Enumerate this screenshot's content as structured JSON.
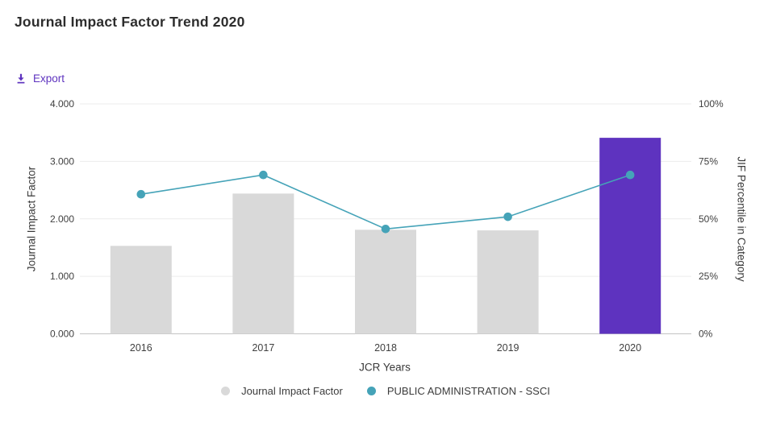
{
  "page": {
    "title": "Journal Impact Factor Trend 2020"
  },
  "toolbar": {
    "export_label": "Export",
    "export_icon": "download-icon"
  },
  "colors": {
    "accent_purple": "#5e33bf",
    "bar_gray": "#d9d9d9",
    "line_teal": "#45a3b8",
    "grid": "#ececec",
    "axis_line": "#c4c4c4",
    "text_dark": "#2d2d2d",
    "text_axis": "#3f3f3f"
  },
  "chart_data": {
    "type": "bar",
    "title": "Journal Impact Factor Trend 2020",
    "categories": [
      "2016",
      "2017",
      "2018",
      "2019",
      "2020"
    ],
    "series": [
      {
        "name": "Journal Impact Factor",
        "type": "bar",
        "axis": "left",
        "values": [
          1.53,
          2.44,
          1.81,
          1.8,
          3.41
        ],
        "color": "#d9d9d9",
        "highlight": {
          "index": 4,
          "color": "#5e33bf"
        }
      },
      {
        "name": "PUBLIC ADMINISTRATION - SSCI",
        "type": "line",
        "axis": "right",
        "values": [
          60.7,
          69.1,
          45.6,
          50.9,
          69.1
        ],
        "color": "#45a3b8"
      }
    ],
    "xlabel": "JCR Years",
    "left_axis": {
      "label": "Journal Impact Factor",
      "min": 0,
      "max": 4,
      "ticks": [
        "0.000",
        "1.000",
        "2.000",
        "3.000",
        "4.000"
      ]
    },
    "right_axis": {
      "label": "JIF Percentile in Category",
      "min": 0,
      "max": 100,
      "ticks": [
        "0%",
        "25%",
        "50%",
        "75%",
        "100%"
      ]
    },
    "grid": true,
    "legend": {
      "position": "bottom",
      "items": [
        {
          "label": "Journal Impact Factor",
          "color": "#d9d9d9"
        },
        {
          "label": "PUBLIC ADMINISTRATION - SSCI",
          "color": "#45a3b8"
        }
      ]
    }
  }
}
